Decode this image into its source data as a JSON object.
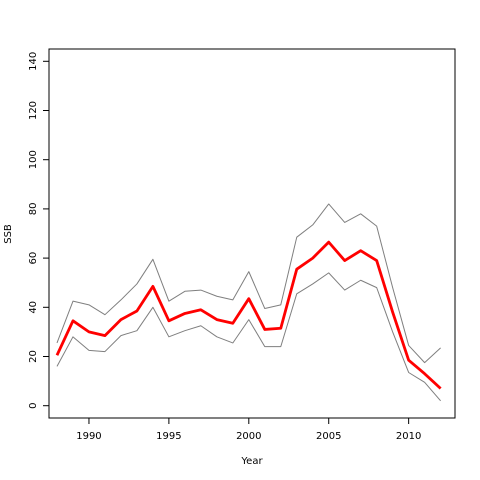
{
  "chart_data": {
    "type": "line",
    "title": "",
    "xlabel": "Year",
    "ylabel": "SSB",
    "xlim": [
      1987.5,
      2012.9
    ],
    "ylim": [
      -5,
      145
    ],
    "x_ticks": [
      1990,
      1995,
      2000,
      2005,
      2010
    ],
    "y_ticks": [
      0,
      20,
      40,
      60,
      80,
      100,
      120,
      140
    ],
    "grid": false,
    "legend": "none",
    "x": [
      1988,
      1989,
      1990,
      1991,
      1992,
      1993,
      1994,
      1995,
      1996,
      1997,
      1998,
      1999,
      2000,
      2001,
      2002,
      2003,
      2004,
      2005,
      2006,
      2007,
      2008,
      2009,
      2010,
      2011,
      2012
    ],
    "series": [
      {
        "color": "#7f7f7f",
        "values": [
          25.5,
          42.5,
          41,
          37,
          43,
          49.5,
          59.5,
          42.5,
          46.5,
          47,
          44.5,
          43,
          54.5,
          39.5,
          41,
          68.5,
          73.5,
          82,
          74.5,
          78,
          73,
          48,
          24.5,
          17.5,
          23.5
        ]
      },
      {
        "color": "#ff0000",
        "values": [
          20.5,
          34.5,
          30,
          28.5,
          35,
          38.5,
          48.5,
          34.5,
          37.5,
          39,
          35,
          33.5,
          43.5,
          31,
          31.5,
          55.5,
          60,
          66.5,
          59,
          63,
          59,
          38,
          18.5,
          13,
          7
        ]
      },
      {
        "color": "#7f7f7f",
        "values": [
          16,
          28,
          22.5,
          22,
          28.5,
          30.5,
          40,
          28,
          30.5,
          32.5,
          28,
          25.5,
          35,
          24,
          24,
          45.5,
          49.5,
          54,
          47,
          51,
          48,
          30,
          13.5,
          9.5,
          2
        ]
      }
    ]
  }
}
